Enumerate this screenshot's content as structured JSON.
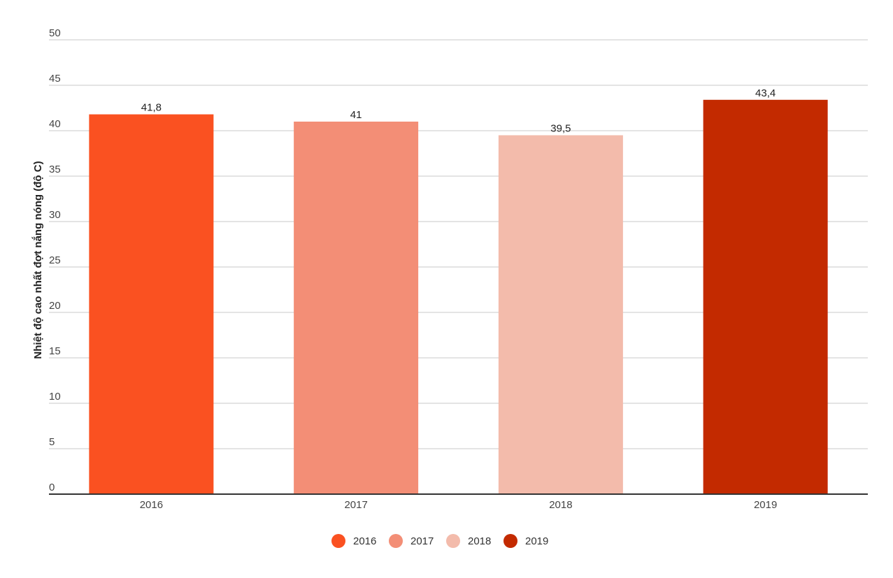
{
  "chart_data": {
    "type": "bar",
    "title": "",
    "xlabel": "",
    "ylabel": "Nhiệt độ cao nhất đợt nắng nóng (độ C)",
    "categories": [
      "2016",
      "2017",
      "2018",
      "2019"
    ],
    "values": [
      41.8,
      41,
      39.5,
      43.4
    ],
    "data_labels": [
      "41,8",
      "41",
      "39,5",
      "43,4"
    ],
    "colors": [
      "#fa5121",
      "#f38e76",
      "#f3bbab",
      "#c32a00"
    ],
    "ylim": [
      0,
      50
    ],
    "yticks": [
      0,
      5,
      10,
      15,
      20,
      25,
      30,
      35,
      40,
      45,
      50
    ],
    "grid": true,
    "legend": {
      "position": "bottom",
      "entries": [
        "2016",
        "2017",
        "2018",
        "2019"
      ]
    }
  }
}
